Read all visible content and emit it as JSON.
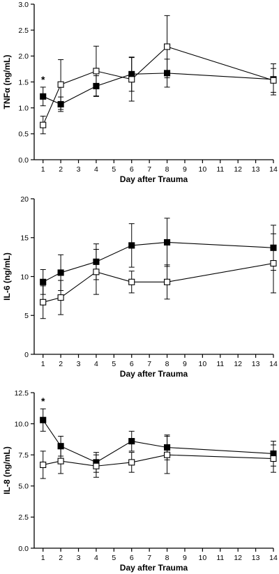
{
  "chart_data": [
    {
      "type": "line",
      "xlabel": "Day after Trauma",
      "ylabel": "TNFα (ng/mL)",
      "x": [
        1,
        2,
        4,
        6,
        8,
        14
      ],
      "x_ticks": [
        "1",
        "2",
        "3",
        "4",
        "5",
        "6",
        "7",
        "8",
        "9",
        "10",
        "11",
        "12",
        "13",
        "14"
      ],
      "y_ticks": [
        "0.0",
        "0.5",
        "1.0",
        "1.5",
        "2.0",
        "2.5",
        "3.0"
      ],
      "ylim": [
        0,
        3.0
      ],
      "xlim": [
        0.5,
        14
      ],
      "grid": false,
      "annotations": [
        {
          "text": "*",
          "x": 1
        }
      ],
      "series": [
        {
          "marker": "filled-square",
          "values": [
            1.22,
            1.07,
            1.42,
            1.65,
            1.67,
            1.55
          ],
          "err": [
            0.18,
            0.14,
            0.2,
            0.33,
            0.27,
            0.3
          ]
        },
        {
          "marker": "open-square",
          "values": [
            0.67,
            1.45,
            1.71,
            1.55,
            2.18,
            1.53
          ],
          "err": [
            0.17,
            0.48,
            0.48,
            0.42,
            0.6,
            0.23
          ]
        }
      ]
    },
    {
      "type": "line",
      "xlabel": "Day after Trauma",
      "ylabel": "IL-6 (ng/mL)",
      "x": [
        1,
        2,
        4,
        6,
        8,
        14
      ],
      "x_ticks": [
        "1",
        "2",
        "3",
        "4",
        "5",
        "6",
        "7",
        "8",
        "9",
        "10",
        "11",
        "12",
        "13",
        "14"
      ],
      "y_ticks": [
        "0",
        "5",
        "10",
        "15",
        "20"
      ],
      "ylim": [
        0,
        20
      ],
      "xlim": [
        0.5,
        14
      ],
      "grid": false,
      "series": [
        {
          "marker": "filled-square",
          "values": [
            9.3,
            10.5,
            11.9,
            14.0,
            14.4,
            13.7
          ],
          "err": [
            1.6,
            2.3,
            2.3,
            2.8,
            3.1,
            2.9
          ]
        },
        {
          "marker": "open-square",
          "values": [
            6.7,
            7.3,
            10.6,
            9.3,
            9.3,
            11.7
          ],
          "err": [
            2.1,
            2.2,
            2.9,
            1.4,
            2.2,
            3.8
          ]
        }
      ]
    },
    {
      "type": "line",
      "xlabel": "Day after Trauma",
      "ylabel": "IL-8 (ng/mL)",
      "x": [
        1,
        2,
        4,
        6,
        8,
        14
      ],
      "x_ticks": [
        "1",
        "2",
        "3",
        "4",
        "5",
        "6",
        "7",
        "8",
        "9",
        "10",
        "11",
        "12",
        "13",
        "14"
      ],
      "y_ticks": [
        "0.0",
        "2.5",
        "5.0",
        "7.5",
        "10.0",
        "12.5"
      ],
      "ylim": [
        0,
        12.5
      ],
      "xlim": [
        0.5,
        14
      ],
      "grid": false,
      "annotations": [
        {
          "text": "*",
          "x": 1
        }
      ],
      "series": [
        {
          "marker": "filled-square",
          "values": [
            10.3,
            8.2,
            6.9,
            8.6,
            8.1,
            7.6
          ],
          "err": [
            0.9,
            0.8,
            0.8,
            0.8,
            1.0,
            1.0
          ]
        },
        {
          "marker": "open-square",
          "values": [
            6.7,
            7.0,
            6.6,
            6.9,
            7.5,
            7.2
          ],
          "err": [
            1.1,
            1.0,
            0.9,
            0.8,
            1.5,
            1.1
          ]
        }
      ]
    }
  ]
}
